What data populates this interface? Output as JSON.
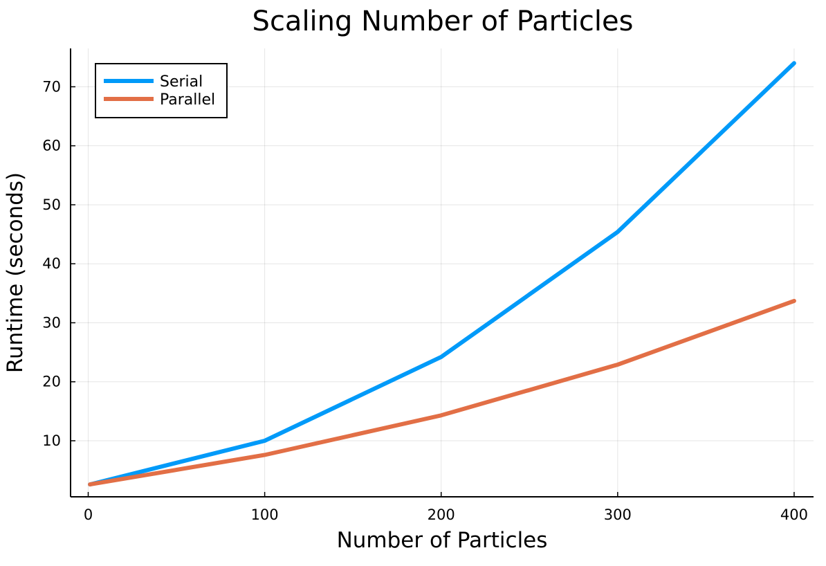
{
  "chart_data": {
    "type": "line",
    "title": "Scaling Number of Particles",
    "xlabel": "Number of Particles",
    "ylabel": "Runtime (seconds)",
    "xlim": [
      -10,
      411
    ],
    "ylim": [
      0.5,
      76.5
    ],
    "xticks": [
      0,
      100,
      200,
      300,
      400
    ],
    "yticks": [
      10,
      20,
      30,
      40,
      50,
      60,
      70
    ],
    "grid": true,
    "legend_position": "top-left",
    "series": [
      {
        "name": "Serial",
        "color": "#009af9",
        "x": [
          1,
          100,
          200,
          300,
          400
        ],
        "y": [
          2.6,
          10.0,
          24.2,
          45.4,
          74.0
        ]
      },
      {
        "name": "Parallel",
        "color": "#e26f46",
        "x": [
          1,
          100,
          200,
          300,
          400
        ],
        "y": [
          2.6,
          7.6,
          14.3,
          22.9,
          33.7
        ]
      }
    ]
  }
}
